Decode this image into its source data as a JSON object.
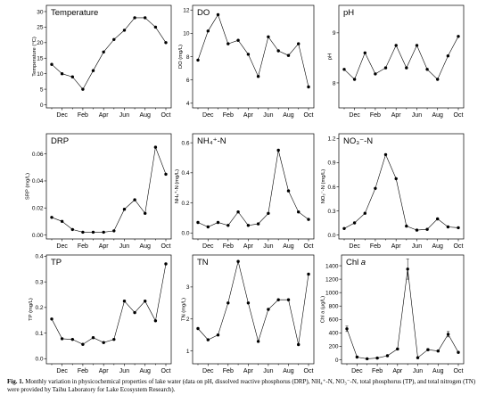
{
  "chart_data": [
    {
      "type": "line",
      "title": "Temperature",
      "ylabel": "Temperature (°C)",
      "xticks": [
        "Dec",
        "Feb",
        "Apr",
        "Jun",
        "Aug",
        "Oct"
      ],
      "yticks": [
        "0",
        "5",
        "10",
        "15",
        "20",
        "25",
        "30"
      ],
      "ylim": [
        -1,
        32
      ],
      "values": [
        13,
        10,
        9,
        5,
        11,
        17,
        21,
        24,
        28,
        28,
        25,
        20
      ]
    },
    {
      "type": "line",
      "title": "DO",
      "ylabel": "DO (mg/L)",
      "xticks": [
        "Dec",
        "Feb",
        "Apr",
        "Jun",
        "Aug",
        "Oct"
      ],
      "yticks": [
        "4",
        "6",
        "8",
        "10",
        "12"
      ],
      "ylim": [
        3.6,
        12.4
      ],
      "values": [
        7.7,
        10.2,
        11.6,
        9.1,
        9.4,
        8.2,
        6.3,
        9.7,
        8.5,
        8.1,
        9.1,
        5.4
      ]
    },
    {
      "type": "line",
      "title": "pH",
      "ylabel": "pH",
      "xticks": [
        "Dec",
        "Feb",
        "Apr",
        "Jun",
        "Aug",
        "Oct"
      ],
      "yticks": [
        "8",
        "9"
      ],
      "ylim": [
        7.5,
        9.55
      ],
      "values": [
        8.27,
        8.07,
        8.6,
        8.18,
        8.3,
        8.75,
        8.3,
        8.75,
        8.27,
        8.07,
        8.54,
        8.93
      ]
    },
    {
      "type": "line",
      "title": "DRP",
      "ylabel": "SRP (mg/L)",
      "xticks": [
        "Dec",
        "Feb",
        "Apr",
        "Jun",
        "Aug",
        "Oct"
      ],
      "yticks": [
        "0.00",
        "0.02",
        "0.04",
        "0.06"
      ],
      "ylim": [
        -0.003,
        0.075
      ],
      "values": [
        0.013,
        0.01,
        0.004,
        0.002,
        0.002,
        0.002,
        0.003,
        0.019,
        0.026,
        0.016,
        0.065,
        0.045
      ]
    },
    {
      "type": "line",
      "title": "NH₄⁺-N",
      "ylabel": "NH₄⁺-N (mg/L)",
      "xticks": [
        "Dec",
        "Feb",
        "Apr",
        "Jun",
        "Aug",
        "Oct"
      ],
      "yticks": [
        "0.0",
        "0.2",
        "0.4",
        "0.6"
      ],
      "ylim": [
        -0.04,
        0.66
      ],
      "values": [
        0.07,
        0.04,
        0.07,
        0.05,
        0.14,
        0.05,
        0.06,
        0.13,
        0.55,
        0.28,
        0.14,
        0.09
      ]
    },
    {
      "type": "line",
      "title": "NO₃⁻-N",
      "ylabel": "NO₃⁻-N (mg/L)",
      "xticks": [
        "Dec",
        "Feb",
        "Apr",
        "Jun",
        "Aug",
        "Oct"
      ],
      "yticks": [
        "0.0",
        "0.3",
        "0.6",
        "0.9",
        "1.2"
      ],
      "ylim": [
        -0.05,
        1.26
      ],
      "values": [
        0.08,
        0.15,
        0.27,
        0.58,
        1.0,
        0.7,
        0.11,
        0.06,
        0.07,
        0.2,
        0.1,
        0.09
      ]
    },
    {
      "type": "line",
      "title": "TP",
      "ylabel": "TP (mg/L)",
      "xticks": [
        "Dec",
        "Feb",
        "Apr",
        "Jun",
        "Aug",
        "Oct"
      ],
      "yticks": [
        "0.0",
        "0.1",
        "0.2",
        "0.3",
        "0.4"
      ],
      "ylim": [
        -0.02,
        0.405
      ],
      "values": [
        0.155,
        0.078,
        0.075,
        0.056,
        0.082,
        0.063,
        0.075,
        0.225,
        0.18,
        0.225,
        0.148,
        0.37
      ]
    },
    {
      "type": "line",
      "title": "TN",
      "ylabel": "TN (mg/L)",
      "xticks": [
        "Dec",
        "Feb",
        "Apr",
        "Jun",
        "Aug",
        "Oct"
      ],
      "yticks": [
        "1",
        "2",
        "3"
      ],
      "ylim": [
        0.6,
        4.0
      ],
      "values": [
        1.7,
        1.35,
        1.5,
        2.5,
        3.8,
        2.5,
        1.3,
        2.3,
        2.6,
        2.6,
        1.2,
        3.4
      ]
    },
    {
      "type": "line",
      "title": "Chl",
      "title_italic": "a",
      "ylabel": "Chl a (μg/L)",
      "xticks": [
        "Dec",
        "Feb",
        "Apr",
        "Jun",
        "Aug",
        "Oct"
      ],
      "yticks": [
        "0",
        "200",
        "400",
        "600",
        "800",
        "1000",
        "1200",
        "1400"
      ],
      "ylim": [
        -60,
        1560
      ],
      "values": [
        460,
        40,
        15,
        25,
        60,
        160,
        1350,
        30,
        150,
        130,
        380,
        110
      ],
      "errors": [
        40,
        10,
        5,
        5,
        10,
        15,
        150,
        5,
        15,
        10,
        40,
        10
      ]
    }
  ],
  "caption": {
    "label": "Fig. 1.",
    "text": "Monthly variation in physicochemical properties of lake water (data on pH, dissolved reactive phosphorus (DRP), NH₄⁺-N, NO₃⁻-N, total phosphorus (TP), and total nitrogen (TN) were provided by Taihu Laboratory for Lake Ecosystem Research)."
  }
}
